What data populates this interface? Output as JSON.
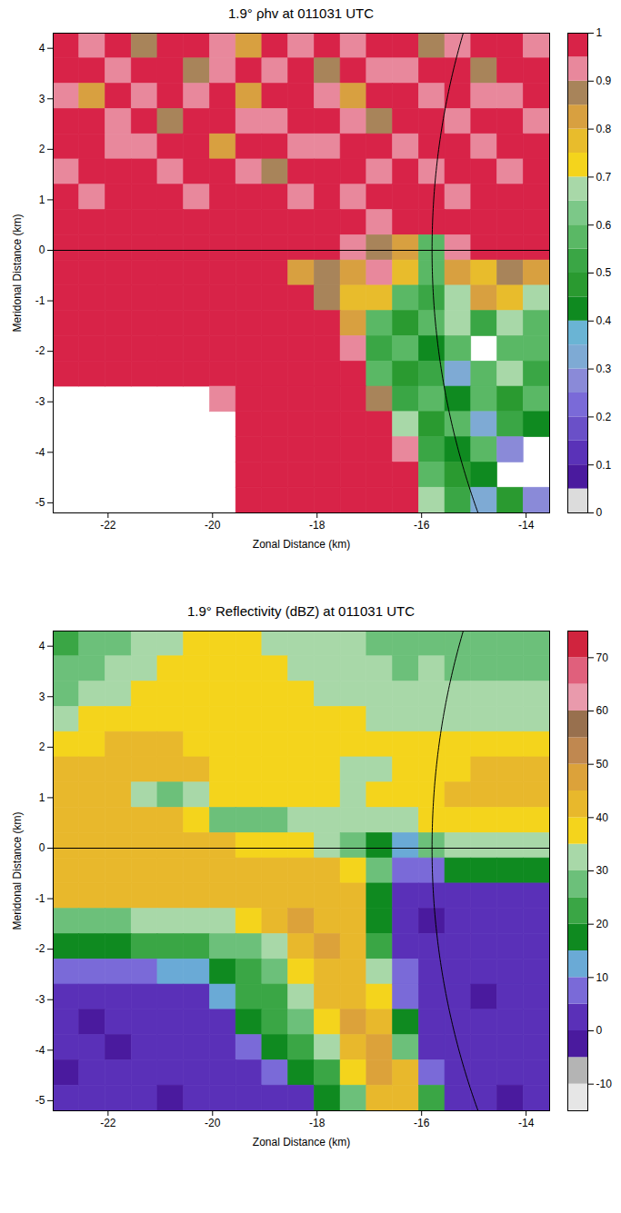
{
  "chart_data": [
    {
      "type": "heatmap",
      "title": "1.9° ρhv at 011031 UTC",
      "x_label": "Zonal Distance (km)",
      "y_label": "Meridonal Distance (km)",
      "xlim": [
        -23.05,
        -13.55
      ],
      "ylim": [
        -5.2,
        4.3
      ],
      "xticks": [
        -22,
        -20,
        -18,
        -16,
        -14
      ],
      "yticks": [
        -5,
        -4,
        -3,
        -2,
        -1,
        0,
        1,
        2,
        3,
        4
      ],
      "x_edges": [
        -23.05,
        -22.55,
        -22.05,
        -21.55,
        -21.05,
        -20.55,
        -20.05,
        -19.55,
        -19.05,
        -18.55,
        -18.05,
        -17.55,
        -17.05,
        -16.55,
        -16.05,
        -15.55,
        -15.05,
        -14.55,
        -14.05,
        -13.55
      ],
      "y_edges": [
        4.3,
        3.8,
        3.3,
        2.8,
        2.3,
        1.8,
        1.3,
        0.8,
        0.3,
        -0.2,
        -0.7,
        -1.2,
        -1.7,
        -2.2,
        -2.7,
        -3.2,
        -3.7,
        -4.2,
        -4.7,
        -5.2
      ],
      "values": [
        [
          0.96,
          0.93,
          0.97,
          0.88,
          0.96,
          0.97,
          0.91,
          0.85,
          0.96,
          0.94,
          0.98,
          0.9,
          0.96,
          0.97,
          0.86,
          0.93,
          0.97,
          0.96,
          0.9
        ],
        [
          0.97,
          0.96,
          0.9,
          0.96,
          0.98,
          0.86,
          0.94,
          0.97,
          0.92,
          0.96,
          0.88,
          0.97,
          0.94,
          0.9,
          0.97,
          0.96,
          0.88,
          0.96,
          0.97
        ],
        [
          0.93,
          0.82,
          0.96,
          0.94,
          0.97,
          0.9,
          0.96,
          0.8,
          0.96,
          0.97,
          0.94,
          0.85,
          0.97,
          0.96,
          0.92,
          0.97,
          0.94,
          0.9,
          0.96
        ],
        [
          0.97,
          0.96,
          0.92,
          0.97,
          0.88,
          0.96,
          0.97,
          0.94,
          0.9,
          0.96,
          0.97,
          0.93,
          0.88,
          0.96,
          0.97,
          0.91,
          0.96,
          0.97,
          0.93
        ],
        [
          0.96,
          0.97,
          0.94,
          0.9,
          0.96,
          0.97,
          0.83,
          0.96,
          0.97,
          0.93,
          0.9,
          0.96,
          0.97,
          0.94,
          0.96,
          0.97,
          0.92,
          0.96,
          0.97
        ],
        [
          0.9,
          0.96,
          0.97,
          0.96,
          0.93,
          0.97,
          0.96,
          0.94,
          0.88,
          0.97,
          0.96,
          0.97,
          0.92,
          0.96,
          0.9,
          0.97,
          0.96,
          0.94,
          0.96
        ],
        [
          0.97,
          0.93,
          0.96,
          0.97,
          0.96,
          0.91,
          0.96,
          0.97,
          0.96,
          0.92,
          0.97,
          0.94,
          0.96,
          0.97,
          0.96,
          0.93,
          0.97,
          0.96,
          0.96
        ],
        [
          0.96,
          0.97,
          0.98,
          0.96,
          0.97,
          0.98,
          0.96,
          0.97,
          0.96,
          0.97,
          0.98,
          0.96,
          0.93,
          0.97,
          0.98,
          0.96,
          0.97,
          0.96,
          0.97
        ],
        [
          0.98,
          0.99,
          0.98,
          0.99,
          0.98,
          0.99,
          0.98,
          0.97,
          0.98,
          0.96,
          0.96,
          0.9,
          0.86,
          0.8,
          0.55,
          0.92,
          0.97,
          0.98,
          0.97
        ],
        [
          0.99,
          0.99,
          0.99,
          0.98,
          0.99,
          0.99,
          0.98,
          0.99,
          0.97,
          0.82,
          0.86,
          0.8,
          0.9,
          0.76,
          0.6,
          0.8,
          0.78,
          0.86,
          0.8
        ],
        [
          0.99,
          0.99,
          0.98,
          0.99,
          0.99,
          0.99,
          0.99,
          0.98,
          0.99,
          0.97,
          0.86,
          0.78,
          0.76,
          0.55,
          0.5,
          0.7,
          0.8,
          0.76,
          0.65
        ],
        [
          0.99,
          0.99,
          0.99,
          0.99,
          0.98,
          0.99,
          0.99,
          0.99,
          0.98,
          0.99,
          0.97,
          0.8,
          0.6,
          0.45,
          0.55,
          0.65,
          0.5,
          0.7,
          0.6
        ],
        [
          0.98,
          0.99,
          0.99,
          0.98,
          0.99,
          0.99,
          0.99,
          0.99,
          0.99,
          0.98,
          0.99,
          0.9,
          0.5,
          0.55,
          0.4,
          0.6,
          null,
          0.6,
          0.55
        ],
        [
          0.97,
          0.97,
          0.96,
          0.98,
          0.97,
          0.96,
          0.98,
          0.99,
          0.99,
          0.99,
          0.98,
          0.97,
          0.6,
          0.45,
          0.5,
          0.35,
          0.55,
          0.65,
          0.5
        ],
        [
          null,
          null,
          null,
          null,
          null,
          null,
          0.9,
          0.99,
          0.99,
          0.99,
          0.98,
          0.99,
          0.86,
          0.5,
          0.6,
          0.4,
          0.55,
          0.45,
          0.6
        ],
        [
          null,
          null,
          null,
          null,
          null,
          null,
          null,
          0.98,
          0.99,
          0.99,
          0.99,
          0.98,
          0.99,
          0.7,
          0.45,
          0.6,
          0.35,
          0.5,
          0.4
        ],
        [
          null,
          null,
          null,
          null,
          null,
          null,
          null,
          0.97,
          0.99,
          0.99,
          0.99,
          0.99,
          0.99,
          0.9,
          0.5,
          0.4,
          0.55,
          0.3,
          null
        ],
        [
          null,
          null,
          null,
          null,
          null,
          null,
          null,
          0.98,
          0.99,
          0.99,
          0.98,
          0.99,
          0.99,
          0.98,
          0.6,
          0.45,
          0.4,
          null,
          null
        ],
        [
          null,
          null,
          null,
          null,
          null,
          null,
          null,
          0.97,
          0.99,
          0.98,
          0.99,
          0.99,
          0.99,
          0.98,
          0.7,
          0.5,
          0.35,
          0.45,
          0.3
        ]
      ],
      "colorbar": {
        "range": [
          0,
          1
        ],
        "ticks": [
          0,
          0.1,
          0.2,
          0.3,
          0.4,
          0.5,
          0.6,
          0.7,
          0.8,
          0.9,
          1
        ],
        "colors": [
          "#dcdcdc",
          "#4a1a9e",
          "#5a32b8",
          "#6a50c8",
          "#7a6ad8",
          "#8a8ad8",
          "#7eaad4",
          "#6ab4d4",
          "#0f8a20",
          "#2a9a30",
          "#3aa645",
          "#5ab865",
          "#7cc888",
          "#a8d8a8",
          "#f4d41c",
          "#e8bc2c",
          "#d8a040",
          "#a8845a",
          "#e8889c",
          "#d82348"
        ]
      },
      "reference_lines": {
        "y": 0,
        "range_ring_radius": 15.8
      }
    },
    {
      "type": "heatmap",
      "title": "1.9° Reflectivity (dBZ) at 011031 UTC",
      "x_label": "Zonal Distance (km)",
      "y_label": "Meridonal Distance (km)",
      "xlim": [
        -23.05,
        -13.55
      ],
      "ylim": [
        -5.2,
        4.3
      ],
      "xticks": [
        -22,
        -20,
        -18,
        -16,
        -14
      ],
      "yticks": [
        -5,
        -4,
        -3,
        -2,
        -1,
        0,
        1,
        2,
        3,
        4
      ],
      "x_edges": [
        -23.05,
        -22.55,
        -22.05,
        -21.55,
        -21.05,
        -20.55,
        -20.05,
        -19.55,
        -19.05,
        -18.55,
        -18.05,
        -17.55,
        -17.05,
        -16.55,
        -16.05,
        -15.55,
        -15.05,
        -14.55,
        -14.05,
        -13.55
      ],
      "y_edges": [
        4.3,
        3.8,
        3.3,
        2.8,
        2.3,
        1.8,
        1.3,
        0.8,
        0.3,
        -0.2,
        -0.7,
        -1.2,
        -1.7,
        -2.2,
        -2.7,
        -3.2,
        -3.7,
        -4.2,
        -4.7,
        -5.2
      ],
      "values": [
        [
          24,
          26,
          28,
          33,
          34,
          35,
          35,
          35,
          34,
          33,
          32,
          30,
          29,
          28,
          28,
          27,
          26,
          27,
          28
        ],
        [
          25,
          28,
          30,
          34,
          35,
          36,
          36,
          35,
          35,
          34,
          33,
          31,
          30,
          29,
          30,
          29,
          28,
          28,
          29
        ],
        [
          28,
          31,
          33,
          35,
          36,
          37,
          37,
          36,
          36,
          35,
          34,
          33,
          32,
          31,
          32,
          31,
          30,
          30,
          31
        ],
        [
          33,
          35,
          36,
          37,
          38,
          38,
          38,
          37,
          37,
          36,
          35,
          35,
          34,
          33,
          34,
          34,
          33,
          33,
          34
        ],
        [
          38,
          39,
          40,
          40,
          40,
          39,
          39,
          38,
          38,
          37,
          36,
          35,
          35,
          35,
          36,
          37,
          37,
          37,
          38
        ],
        [
          40,
          41,
          42,
          42,
          41,
          40,
          39,
          38,
          37,
          36,
          35,
          34,
          34,
          35,
          37,
          39,
          40,
          40,
          40
        ],
        [
          40,
          41,
          41,
          30,
          27,
          30,
          38,
          38,
          37,
          36,
          35,
          34,
          35,
          36,
          38,
          40,
          41,
          41,
          40
        ],
        [
          41,
          42,
          42,
          42,
          40,
          36,
          28,
          27,
          28,
          30,
          30,
          33,
          34,
          34,
          36,
          38,
          39,
          39,
          38
        ],
        [
          42,
          42,
          43,
          43,
          42,
          41,
          40,
          39,
          38,
          36,
          30,
          26,
          18,
          14,
          25,
          30,
          33,
          33,
          32
        ],
        [
          42,
          42,
          43,
          43,
          43,
          42,
          41,
          40,
          40,
          41,
          40,
          38,
          25,
          8,
          5,
          15,
          18,
          18,
          15
        ],
        [
          40,
          40,
          41,
          42,
          42,
          41,
          40,
          40,
          41,
          44,
          44,
          40,
          18,
          2,
          0,
          2,
          3,
          2,
          4
        ],
        [
          25,
          25,
          28,
          30,
          32,
          33,
          34,
          38,
          43,
          46,
          44,
          40,
          15,
          0,
          -1,
          1,
          2,
          1,
          3
        ],
        [
          15,
          15,
          18,
          20,
          22,
          24,
          25,
          26,
          34,
          44,
          46,
          42,
          20,
          0,
          0,
          2,
          0,
          1,
          2
        ],
        [
          5,
          5,
          6,
          8,
          10,
          12,
          18,
          22,
          25,
          38,
          44,
          43,
          30,
          5,
          0,
          1,
          0,
          2,
          0
        ],
        [
          0,
          0,
          1,
          2,
          2,
          3,
          10,
          20,
          24,
          30,
          42,
          44,
          38,
          5,
          0,
          1,
          -1,
          1,
          0
        ],
        [
          0,
          -1,
          0,
          1,
          0,
          1,
          3,
          15,
          22,
          25,
          38,
          45,
          42,
          15,
          0,
          0,
          1,
          0,
          1
        ],
        [
          0,
          0,
          -1,
          0,
          1,
          0,
          1,
          5,
          15,
          22,
          30,
          43,
          45,
          25,
          0,
          1,
          0,
          0,
          1
        ],
        [
          -1,
          0,
          0,
          1,
          0,
          0,
          1,
          2,
          5,
          15,
          22,
          38,
          46,
          40,
          5,
          0,
          1,
          0,
          0
        ],
        [
          0,
          0,
          1,
          0,
          -1,
          0,
          0,
          1,
          2,
          3,
          15,
          25,
          42,
          44,
          20,
          1,
          0,
          -1,
          0
        ]
      ],
      "colorbar": {
        "range": [
          -15,
          75
        ],
        "ticks": [
          -10,
          0,
          10,
          20,
          30,
          40,
          50,
          60,
          70
        ],
        "colors": [
          "#e6e6e6",
          "#b4b4b4",
          "#4a1a9e",
          "#5a30b8",
          "#7a6ad8",
          "#6aaad6",
          "#0f8a20",
          "#3aa645",
          "#6cc07a",
          "#a8d8a8",
          "#f4d41c",
          "#e8b82c",
          "#dca23a",
          "#c08850",
          "#98704e",
          "#e99aac",
          "#e0607c",
          "#d0243e"
        ]
      },
      "reference_lines": {
        "y": 0,
        "range_ring_radius": 15.8
      }
    }
  ]
}
